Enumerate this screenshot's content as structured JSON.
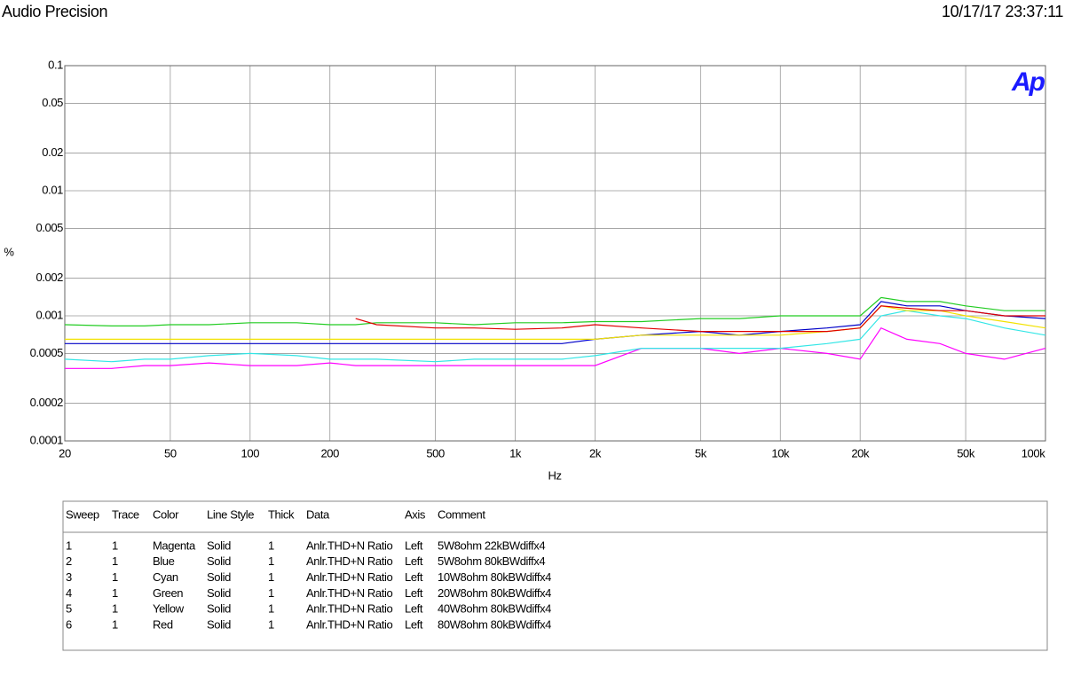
{
  "header": {
    "title": "Audio Precision",
    "timestamp": "10/17/17 23:37:11"
  },
  "chart_data": {
    "type": "line",
    "xlabel": "Hz",
    "ylabel": "%",
    "logo": "Ap",
    "xscale": "log",
    "yscale": "log",
    "grid": true,
    "xlim": [
      20,
      100000
    ],
    "ylim": [
      0.0001,
      0.1
    ],
    "xticks": [
      20,
      50,
      100,
      200,
      500,
      {
        "value": 1000,
        "label": "1k"
      },
      {
        "value": 2000,
        "label": "2k"
      },
      {
        "value": 5000,
        "label": "5k"
      },
      {
        "value": 10000,
        "label": "10k"
      },
      {
        "value": 20000,
        "label": "20k"
      },
      {
        "value": 50000,
        "label": "50k"
      },
      {
        "value": 100000,
        "label": "100k"
      }
    ],
    "yticks": [
      0.1,
      0.05,
      0.02,
      0.01,
      0.005,
      0.002,
      0.001,
      0.0005,
      0.0002,
      0.0001
    ],
    "x": [
      20,
      30,
      40,
      50,
      70,
      100,
      150,
      200,
      250,
      300,
      500,
      700,
      1000,
      1500,
      2000,
      3000,
      5000,
      7000,
      10000,
      15000,
      20000,
      24000,
      30000,
      40000,
      50000,
      70000,
      100000
    ],
    "series": [
      {
        "name": "5W8ohm 22kBWdiffx4",
        "color": "#ff00ff",
        "values": [
          0.00038,
          0.00038,
          0.0004,
          0.0004,
          0.00042,
          0.0004,
          0.0004,
          0.00042,
          0.0004,
          0.0004,
          0.0004,
          0.0004,
          0.0004,
          0.0004,
          0.0004,
          0.00055,
          0.00055,
          0.0005,
          0.00055,
          0.0005,
          0.00045,
          0.0008,
          0.00065,
          0.0006,
          0.0005,
          0.00045,
          0.00055
        ]
      },
      {
        "name": "5W8ohm 80kBWdiffx4",
        "color": "#0000c8",
        "values": [
          0.0006,
          0.0006,
          0.0006,
          0.0006,
          0.0006,
          0.0006,
          0.0006,
          0.0006,
          0.0006,
          0.0006,
          0.0006,
          0.0006,
          0.0006,
          0.0006,
          0.00065,
          0.0007,
          0.00075,
          0.0007,
          0.00075,
          0.0008,
          0.00085,
          0.0013,
          0.0012,
          0.0012,
          0.0011,
          0.001,
          0.00095
        ]
      },
      {
        "name": "10W8ohm 80kBWdiffx4",
        "color": "#33e6e6",
        "values": [
          0.00045,
          0.00043,
          0.00045,
          0.00045,
          0.00048,
          0.0005,
          0.00048,
          0.00045,
          0.00045,
          0.00045,
          0.00043,
          0.00045,
          0.00045,
          0.00045,
          0.00048,
          0.00055,
          0.00055,
          0.00055,
          0.00055,
          0.0006,
          0.00065,
          0.001,
          0.0011,
          0.001,
          0.00095,
          0.0008,
          0.0007
        ]
      },
      {
        "name": "20W8ohm 80kBWdiffx4",
        "color": "#22cc22",
        "values": [
          0.00085,
          0.00083,
          0.00083,
          0.00085,
          0.00085,
          0.00088,
          0.00088,
          0.00085,
          0.00085,
          0.00088,
          0.00088,
          0.00085,
          0.00088,
          0.00088,
          0.0009,
          0.0009,
          0.00095,
          0.00095,
          0.001,
          0.001,
          0.001,
          0.0014,
          0.0013,
          0.0013,
          0.0012,
          0.0011,
          0.0011
        ]
      },
      {
        "name": "40W8ohm 80kBWdiffx4",
        "color": "#f2e200",
        "values": [
          0.00065,
          0.00065,
          0.00065,
          0.00065,
          0.00065,
          0.00065,
          0.00065,
          0.00065,
          0.00065,
          0.00065,
          0.00065,
          0.00065,
          0.00065,
          0.00065,
          0.00065,
          0.0007,
          0.0007,
          0.0007,
          0.0007,
          0.00075,
          0.0008,
          0.0012,
          0.0011,
          0.0011,
          0.001,
          0.0009,
          0.0008
        ]
      },
      {
        "name": "80W8ohm 80kBWdiffx4",
        "color": "#e00000",
        "values": [
          null,
          null,
          null,
          null,
          null,
          null,
          null,
          null,
          0.00095,
          0.00085,
          0.0008,
          0.0008,
          0.00078,
          0.0008,
          0.00085,
          0.0008,
          0.00075,
          0.00075,
          0.00075,
          0.00075,
          0.0008,
          0.0012,
          0.00115,
          0.0011,
          0.0011,
          0.001,
          0.001
        ]
      }
    ],
    "legend_table": {
      "columns": [
        "Sweep",
        "Trace",
        "Color",
        "Line Style",
        "Thick",
        "Data",
        "Axis",
        "Comment"
      ],
      "rows": [
        [
          "1",
          "1",
          "Magenta",
          "Solid",
          "1",
          "Anlr.THD+N Ratio",
          "Left"
        ],
        [
          "2",
          "1",
          "Blue",
          "Solid",
          "1",
          "Anlr.THD+N Ratio",
          "Left"
        ],
        [
          "3",
          "1",
          "Cyan",
          "Solid",
          "1",
          "Anlr.THD+N Ratio",
          "Left"
        ],
        [
          "4",
          "1",
          "Green",
          "Solid",
          "1",
          "Anlr.THD+N Ratio",
          "Left"
        ],
        [
          "5",
          "1",
          "Yellow",
          "Solid",
          "1",
          "Anlr.THD+N Ratio",
          "Left"
        ],
        [
          "6",
          "1",
          "Red",
          "Solid",
          "1",
          "Anlr.THD+N Ratio",
          "Left"
        ]
      ]
    }
  }
}
